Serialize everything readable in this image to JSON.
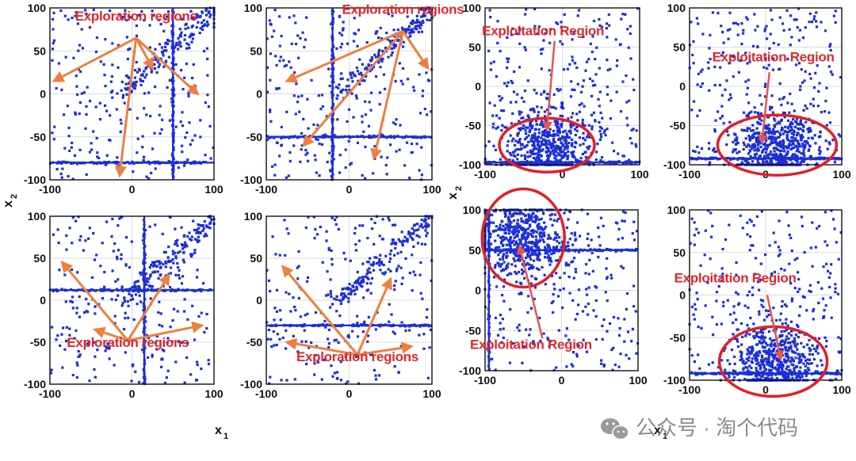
{
  "figure": {
    "axis_labels": {
      "x": "x",
      "x_sub": "1",
      "y": "x",
      "y_sub": "2"
    },
    "watermark": "公众号 · 淘个代码"
  },
  "chart_data": [
    {
      "id": "p1",
      "type": "scatter",
      "annotation": "Exploration regions",
      "annotation_kind": "arrows",
      "pattern": "explore",
      "xlim": [
        -100,
        100
      ],
      "ylim": [
        -100,
        100
      ],
      "xticks": [
        -100,
        0,
        100
      ],
      "yticks": [
        100,
        50,
        0,
        -50,
        -100
      ],
      "hline": -80,
      "vline": 50,
      "arrow_origin": [
        5,
        65
      ],
      "arrow_targets": [
        [
          -95,
          15
        ],
        [
          -15,
          -95
        ],
        [
          25,
          30
        ],
        [
          80,
          0
        ]
      ]
    },
    {
      "id": "p2",
      "type": "scatter",
      "annotation": "Exploration regions",
      "annotation_kind": "arrows",
      "pattern": "explore",
      "xlim": [
        -100,
        100
      ],
      "ylim": [
        -100,
        100
      ],
      "xticks": [
        -100,
        0,
        100
      ],
      "yticks": [
        100,
        50,
        0,
        -50,
        -100
      ],
      "hline": -50,
      "vline": -20,
      "arrow_origin": [
        65,
        73
      ],
      "arrow_targets": [
        [
          -75,
          15
        ],
        [
          -55,
          -60
        ],
        [
          30,
          -75
        ],
        [
          95,
          30
        ]
      ]
    },
    {
      "id": "p3",
      "type": "scatter",
      "annotation": "Exploitation Region",
      "annotation_kind": "circle",
      "pattern": "exploit",
      "xlim": [
        -100,
        100
      ],
      "ylim": [
        -100,
        100
      ],
      "xticks": [
        -100,
        0,
        100
      ],
      "yticks": [
        100,
        50,
        0,
        -50,
        -100
      ],
      "hline": -97,
      "center": [
        -20,
        -75
      ],
      "circle_radius": [
        60,
        34
      ],
      "label_anchor": [
        -25,
        65
      ],
      "arrow_from": [
        -10,
        58
      ],
      "arrow_to": [
        -20,
        -55
      ]
    },
    {
      "id": "p4",
      "type": "scatter",
      "annotation": "Exploitation Region",
      "annotation_kind": "circle",
      "pattern": "exploit",
      "xlim": [
        -100,
        100
      ],
      "ylim": [
        -100,
        100
      ],
      "xticks": [
        -100,
        0,
        100
      ],
      "yticks": [
        100,
        50,
        0,
        -50,
        -100
      ],
      "hline": -92,
      "center": [
        15,
        -75
      ],
      "circle_radius": [
        75,
        38
      ],
      "label_anchor": [
        10,
        32
      ],
      "arrow_from": [
        5,
        18
      ],
      "arrow_to": [
        -5,
        -72
      ]
    },
    {
      "id": "p5",
      "type": "scatter",
      "annotation": "Exploration regions",
      "annotation_kind": "arrows",
      "pattern": "explore",
      "xlim": [
        -100,
        100
      ],
      "ylim": [
        -100,
        100
      ],
      "xticks": [
        -100,
        0,
        100
      ],
      "yticks": [
        100,
        50,
        0,
        -50,
        -100
      ],
      "hline": 12,
      "vline": 15,
      "arrow_origin": [
        -5,
        -48
      ],
      "arrow_targets": [
        [
          -85,
          45
        ],
        [
          -45,
          -35
        ],
        [
          45,
          30
        ],
        [
          85,
          -30
        ]
      ]
    },
    {
      "id": "p6",
      "type": "scatter",
      "annotation": "Exploration regions",
      "annotation_kind": "arrows",
      "pattern": "explore",
      "xlim": [
        -100,
        100
      ],
      "ylim": [
        -100,
        100
      ],
      "xticks": [
        -100,
        0,
        100
      ],
      "yticks": [
        100,
        50,
        0,
        -50,
        -100
      ],
      "hline": -30,
      "arrow_origin": [
        10,
        -65
      ],
      "arrow_targets": [
        [
          -80,
          40
        ],
        [
          -75,
          -50
        ],
        [
          50,
          25
        ],
        [
          75,
          -55
        ]
      ]
    },
    {
      "id": "p7",
      "type": "scatter",
      "annotation": "Exploitation Region",
      "annotation_kind": "circle",
      "pattern": "exploit",
      "xlim": [
        -100,
        100
      ],
      "ylim": [
        -100,
        100
      ],
      "xticks": [
        -100,
        0,
        100
      ],
      "yticks": [
        100,
        50,
        0,
        -50,
        -100
      ],
      "hline": 50,
      "vline": -95,
      "center": [
        -50,
        65
      ],
      "circle_radius": [
        52,
        62
      ],
      "label_anchor": [
        -40,
        -73
      ],
      "arrow_from": [
        -25,
        -60
      ],
      "arrow_to": [
        -55,
        55
      ]
    },
    {
      "id": "p8",
      "type": "scatter",
      "annotation": "Exploitation Region",
      "annotation_kind": "circle",
      "pattern": "exploit",
      "xlim": [
        -100,
        100
      ],
      "ylim": [
        -100,
        100
      ],
      "xticks": [
        -100,
        0,
        100
      ],
      "yticks": [
        100,
        50,
        0,
        -50,
        -100
      ],
      "hline": -92,
      "center": [
        10,
        -78
      ],
      "circle_radius": [
        68,
        44
      ],
      "label_anchor": [
        -40,
        15
      ],
      "arrow_from": [
        2,
        0
      ],
      "arrow_to": [
        20,
        -75
      ]
    }
  ]
}
